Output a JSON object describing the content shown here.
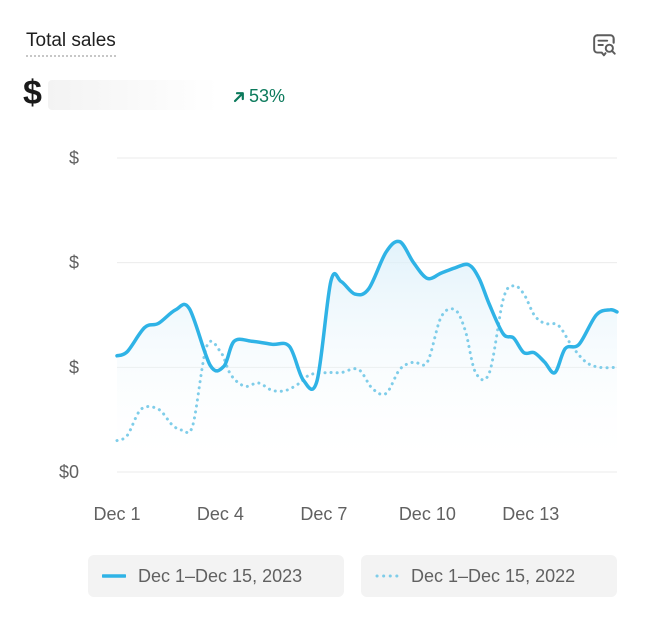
{
  "header": {
    "title": "Total sales",
    "value": "$",
    "change": "53%"
  },
  "colors": {
    "current": "#2fb3e6",
    "previous": "#7fcde9",
    "positive": "#0c7a5c",
    "grid": "#ebebeb"
  },
  "icons": {
    "insight": "search-insight-icon",
    "change": "arrow-up-right-icon"
  },
  "chart_data": {
    "type": "line",
    "title": "Total sales",
    "x": [
      1,
      2,
      3,
      4,
      5,
      6,
      7,
      8,
      9,
      10,
      11,
      12,
      13,
      14,
      15
    ],
    "x_labels": [
      "Dec 1",
      "Dec 4",
      "Dec 7",
      "Dec 10",
      "Dec 13"
    ],
    "x_label_positions": [
      1,
      4,
      7,
      10,
      13
    ],
    "y_tick_labels": [
      "$0",
      "$",
      "$",
      "$"
    ],
    "y_ticks": [
      0,
      1,
      2,
      3
    ],
    "ylim": [
      0,
      3
    ],
    "xlim": [
      1,
      15.5
    ],
    "grid": true,
    "legend_position": "bottom",
    "series": [
      {
        "name": "Dec 1–Dec 15, 2023",
        "style": "solid",
        "x": [
          1,
          1.3,
          1.8,
          2.2,
          2.7,
          3.1,
          3.7,
          4.1,
          4.4,
          4.9,
          5.5,
          6.0,
          6.4,
          6.8,
          7.2,
          7.5,
          7.9,
          8.3,
          8.8,
          9.2,
          9.6,
          10.0,
          10.4,
          10.8,
          11.2,
          11.5,
          11.8,
          12.2,
          12.5,
          12.8,
          13.1,
          13.4,
          13.7,
          14.0,
          14.4,
          14.9,
          15.3,
          15.5
        ],
        "values": [
          1.11,
          1.15,
          1.38,
          1.42,
          1.55,
          1.56,
          1.02,
          1.01,
          1.25,
          1.25,
          1.22,
          1.2,
          0.88,
          0.87,
          1.82,
          1.82,
          1.7,
          1.75,
          2.1,
          2.2,
          2.0,
          1.85,
          1.9,
          1.95,
          1.98,
          1.85,
          1.6,
          1.32,
          1.28,
          1.14,
          1.14,
          1.05,
          0.95,
          1.18,
          1.22,
          1.5,
          1.55,
          1.53
        ]
      },
      {
        "name": "Dec 1–Dec 15, 2022",
        "style": "dotted",
        "x": [
          1,
          1.3,
          1.7,
          2.2,
          2.6,
          2.9,
          3.2,
          3.6,
          4.0,
          4.3,
          4.7,
          5.1,
          5.5,
          5.9,
          6.3,
          6.6,
          7.1,
          7.5,
          8.0,
          8.4,
          8.8,
          9.2,
          9.6,
          10.0,
          10.4,
          10.8,
          11.1,
          11.4,
          11.8,
          12.2,
          12.5,
          12.8,
          13.1,
          13.4,
          13.8,
          14.2,
          14.6,
          15.0,
          15.5
        ],
        "values": [
          0.3,
          0.35,
          0.6,
          0.6,
          0.45,
          0.4,
          0.45,
          1.2,
          1.15,
          0.93,
          0.82,
          0.85,
          0.78,
          0.78,
          0.85,
          0.93,
          0.95,
          0.95,
          0.98,
          0.8,
          0.75,
          0.98,
          1.05,
          1.05,
          1.48,
          1.55,
          1.35,
          0.95,
          0.95,
          1.65,
          1.78,
          1.7,
          1.5,
          1.42,
          1.4,
          1.2,
          1.05,
          1.0,
          1.0
        ]
      }
    ]
  },
  "legend": [
    {
      "label": "Dec 1–Dec 15, 2023",
      "style": "solid"
    },
    {
      "label": "Dec 1–Dec 15, 2022",
      "style": "dotted"
    }
  ]
}
